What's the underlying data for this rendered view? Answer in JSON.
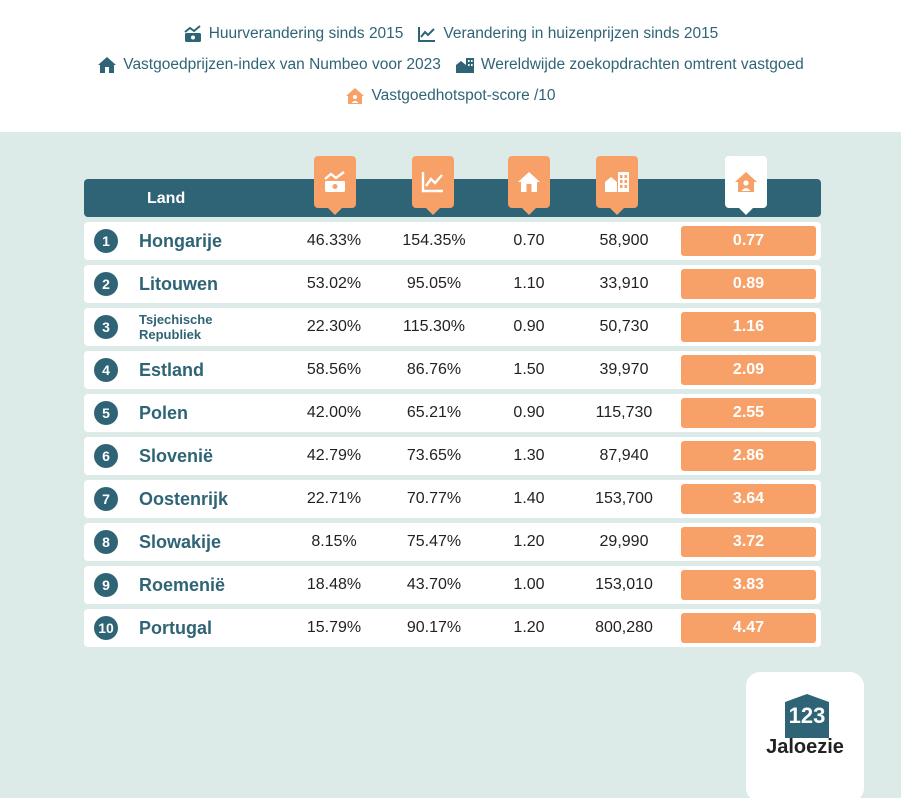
{
  "legend": [
    {
      "icon": "rent-change-icon",
      "label": "Huurverandering sinds 2015"
    },
    {
      "icon": "line-chart-icon",
      "label": "Verandering in huizenprijzen sinds 2015"
    },
    {
      "icon": "house-icon",
      "label": "Vastgoedprijzen-index van Numbeo voor 2023"
    },
    {
      "icon": "buildings-icon",
      "label": "Wereldwijde zoekopdrachten omtrent vastgoed"
    },
    {
      "icon": "house-person-icon",
      "label": "Vastgoedhotspot-score /10"
    }
  ],
  "colors": {
    "primary": "#2f6476",
    "accent": "#f7a168",
    "background": "#dcebe8"
  },
  "chart_data": {
    "type": "table",
    "columns": [
      "Land",
      "Huurverandering sinds 2015",
      "Verandering in huizenprijzen sinds 2015",
      "Vastgoedprijzen-index van Numbeo voor 2023",
      "Wereldwijde zoekopdrachten omtrent vastgoed",
      "Vastgoedhotspot-score /10"
    ],
    "header_label": "Land",
    "rows": [
      {
        "rank": "1",
        "country": "Hongarije",
        "rent": "46.33%",
        "house": "154.35%",
        "index": "0.70",
        "searches": "58,900",
        "score": "0.77"
      },
      {
        "rank": "2",
        "country": "Litouwen",
        "rent": "53.02%",
        "house": "95.05%",
        "index": "1.10",
        "searches": "33,910",
        "score": "0.89"
      },
      {
        "rank": "3",
        "country": "Tsjechische Republiek",
        "rent": "22.30%",
        "house": "115.30%",
        "index": "0.90",
        "searches": "50,730",
        "score": "1.16"
      },
      {
        "rank": "4",
        "country": "Estland",
        "rent": "58.56%",
        "house": "86.76%",
        "index": "1.50",
        "searches": "39,970",
        "score": "2.09"
      },
      {
        "rank": "5",
        "country": "Polen",
        "rent": "42.00%",
        "house": "65.21%",
        "index": "0.90",
        "searches": "115,730",
        "score": "2.55"
      },
      {
        "rank": "6",
        "country": "Slovenië",
        "rent": "42.79%",
        "house": "73.65%",
        "index": "1.30",
        "searches": "87,940",
        "score": "2.86"
      },
      {
        "rank": "7",
        "country": "Oostenrijk",
        "rent": "22.71%",
        "house": "70.77%",
        "index": "1.40",
        "searches": "153,700",
        "score": "3.64"
      },
      {
        "rank": "8",
        "country": "Slowakije",
        "rent": "8.15%",
        "house": "75.47%",
        "index": "1.20",
        "searches": "29,990",
        "score": "3.72"
      },
      {
        "rank": "9",
        "country": "Roemenië",
        "rent": "18.48%",
        "house": "43.70%",
        "index": "1.00",
        "searches": "153,010",
        "score": "3.83"
      },
      {
        "rank": "10",
        "country": "Portugal",
        "rent": "15.79%",
        "house": "90.17%",
        "index": "1.20",
        "searches": "800,280",
        "score": "4.47"
      }
    ]
  },
  "logo": {
    "number": "123",
    "name": "Jaloezie"
  }
}
